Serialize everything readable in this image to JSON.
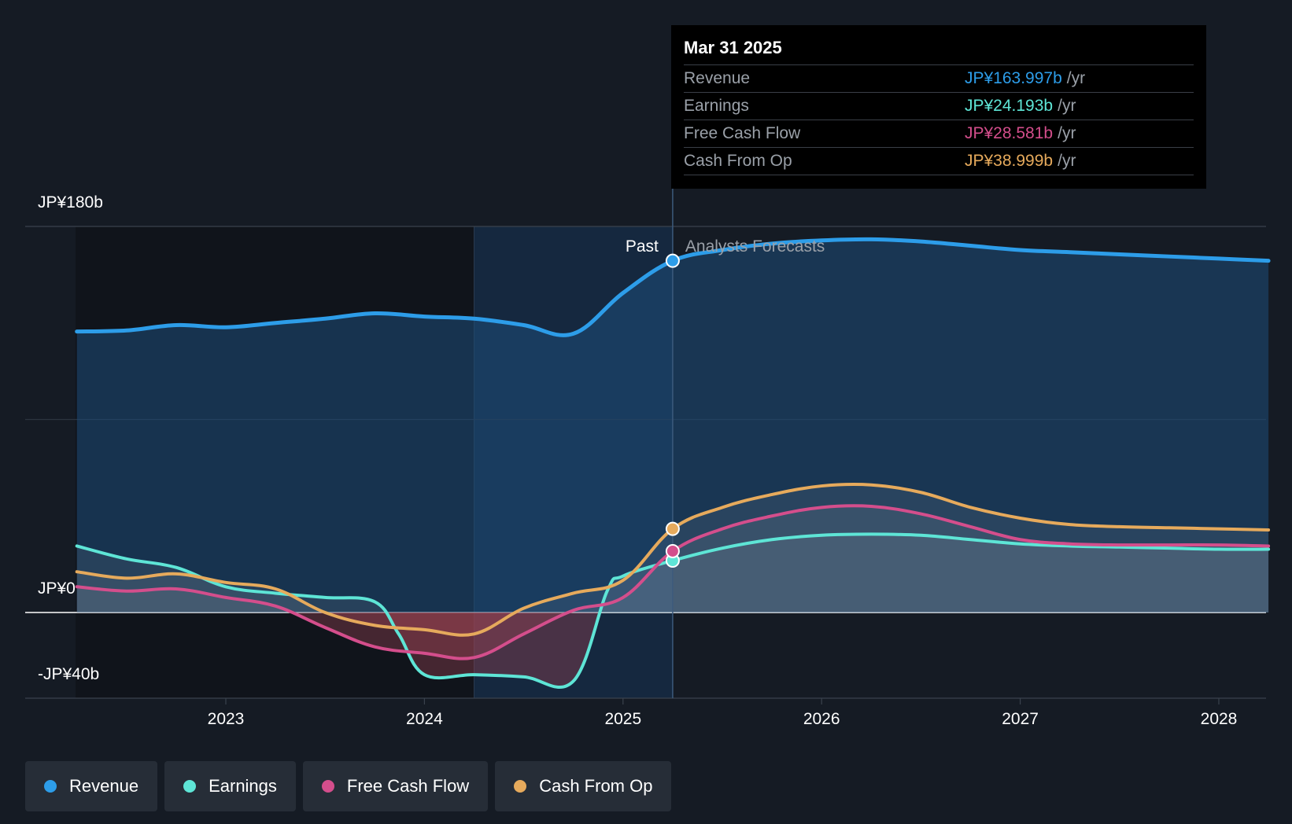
{
  "chart_data": {
    "type": "area",
    "y_tick_labels": [
      "JP¥180b",
      "JP¥0",
      "-JP¥40b"
    ],
    "ylim": [
      -40,
      180
    ],
    "x_tick_labels": [
      "2023",
      "2024",
      "2025",
      "2026",
      "2027",
      "2028"
    ],
    "past_label": "Past",
    "forecast_label": "Analysts Forecasts",
    "series": [
      {
        "name": "Revenue",
        "color": "#2d9de9",
        "points": [
          [
            2022.25,
            131
          ],
          [
            2022.5,
            131.5
          ],
          [
            2022.75,
            134
          ],
          [
            2023.0,
            133
          ],
          [
            2023.25,
            135
          ],
          [
            2023.5,
            137
          ],
          [
            2023.75,
            139.5
          ],
          [
            2024.0,
            138
          ],
          [
            2024.25,
            137
          ],
          [
            2024.5,
            134
          ],
          [
            2024.75,
            130
          ],
          [
            2025.0,
            149
          ],
          [
            2025.25,
            164
          ],
          [
            2025.5,
            169
          ],
          [
            2025.75,
            172
          ],
          [
            2026.0,
            173.5
          ],
          [
            2026.25,
            174
          ],
          [
            2026.5,
            173
          ],
          [
            2026.75,
            171
          ],
          [
            2027.0,
            169
          ],
          [
            2027.25,
            168
          ],
          [
            2027.5,
            167
          ],
          [
            2027.75,
            166
          ],
          [
            2028.0,
            165
          ],
          [
            2028.25,
            164
          ]
        ]
      },
      {
        "name": "Earnings",
        "color": "#5ee5d6",
        "points": [
          [
            2022.25,
            31
          ],
          [
            2022.5,
            25
          ],
          [
            2022.75,
            21
          ],
          [
            2023.0,
            12
          ],
          [
            2023.25,
            9
          ],
          [
            2023.5,
            7
          ],
          [
            2023.75,
            5
          ],
          [
            2023.87,
            -10
          ],
          [
            2024.0,
            -29
          ],
          [
            2024.25,
            -29
          ],
          [
            2024.5,
            -30
          ],
          [
            2024.75,
            -32
          ],
          [
            2024.92,
            10
          ],
          [
            2025.0,
            17
          ],
          [
            2025.25,
            24.2
          ],
          [
            2025.5,
            30
          ],
          [
            2025.75,
            34
          ],
          [
            2026.0,
            36
          ],
          [
            2026.25,
            36.5
          ],
          [
            2026.5,
            36
          ],
          [
            2026.75,
            34
          ],
          [
            2027.0,
            32
          ],
          [
            2027.25,
            31
          ],
          [
            2027.5,
            30.5
          ],
          [
            2027.75,
            30
          ],
          [
            2028.0,
            29.5
          ],
          [
            2028.25,
            29.5
          ]
        ]
      },
      {
        "name": "Free Cash Flow",
        "color": "#d44e8c",
        "points": [
          [
            2022.25,
            12
          ],
          [
            2022.5,
            10
          ],
          [
            2022.75,
            11
          ],
          [
            2023.0,
            7
          ],
          [
            2023.25,
            3
          ],
          [
            2023.5,
            -7
          ],
          [
            2023.75,
            -16
          ],
          [
            2024.0,
            -19
          ],
          [
            2024.25,
            -21
          ],
          [
            2024.5,
            -10
          ],
          [
            2024.75,
            1
          ],
          [
            2025.0,
            7
          ],
          [
            2025.25,
            28.6
          ],
          [
            2025.5,
            39
          ],
          [
            2025.75,
            45
          ],
          [
            2026.0,
            49
          ],
          [
            2026.25,
            49.5
          ],
          [
            2026.5,
            46
          ],
          [
            2026.75,
            40
          ],
          [
            2027.0,
            34
          ],
          [
            2027.25,
            32
          ],
          [
            2027.5,
            31.5
          ],
          [
            2027.75,
            31.5
          ],
          [
            2028.0,
            31.5
          ],
          [
            2028.25,
            31
          ]
        ]
      },
      {
        "name": "Cash From Op",
        "color": "#e6aa5c",
        "points": [
          [
            2022.25,
            19
          ],
          [
            2022.5,
            16
          ],
          [
            2022.75,
            18
          ],
          [
            2023.0,
            14
          ],
          [
            2023.25,
            11
          ],
          [
            2023.5,
            0
          ],
          [
            2023.75,
            -6
          ],
          [
            2024.0,
            -8
          ],
          [
            2024.25,
            -10
          ],
          [
            2024.5,
            2
          ],
          [
            2024.75,
            9
          ],
          [
            2025.0,
            15
          ],
          [
            2025.25,
            39
          ],
          [
            2025.5,
            49
          ],
          [
            2025.75,
            55
          ],
          [
            2026.0,
            59
          ],
          [
            2026.25,
            59.5
          ],
          [
            2026.5,
            56
          ],
          [
            2026.75,
            49
          ],
          [
            2027.0,
            44
          ],
          [
            2027.25,
            41
          ],
          [
            2027.5,
            40
          ],
          [
            2027.75,
            39.5
          ],
          [
            2028.0,
            39
          ],
          [
            2028.25,
            38.5
          ]
        ]
      }
    ],
    "highlight_start": 2024.25,
    "past_end": 2025.25
  },
  "tooltip": {
    "date": "Mar 31 2025",
    "rows": [
      {
        "label": "Revenue",
        "value": "JP¥163.997b",
        "unit": "/yr",
        "color": "#2d9de9"
      },
      {
        "label": "Earnings",
        "value": "JP¥24.193b",
        "unit": "/yr",
        "color": "#5ee5d6"
      },
      {
        "label": "Free Cash Flow",
        "value": "JP¥28.581b",
        "unit": "/yr",
        "color": "#d44e8c"
      },
      {
        "label": "Cash From Op",
        "value": "JP¥38.999b",
        "unit": "/yr",
        "color": "#e6aa5c"
      }
    ]
  },
  "legend": [
    {
      "label": "Revenue",
      "color": "#2d9de9"
    },
    {
      "label": "Earnings",
      "color": "#5ee5d6"
    },
    {
      "label": "Free Cash Flow",
      "color": "#d44e8c"
    },
    {
      "label": "Cash From Op",
      "color": "#e6aa5c"
    }
  ]
}
